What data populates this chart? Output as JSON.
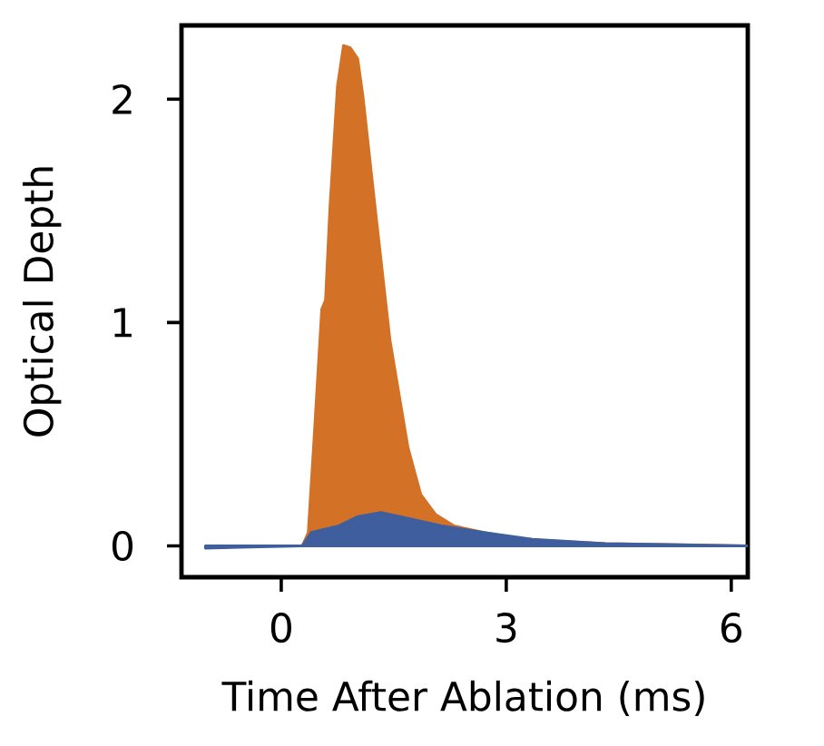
{
  "chart_data": {
    "type": "area",
    "xlabel": "Time After Ablation (ms)",
    "ylabel": "Optical Depth",
    "xlim": [
      -1.33,
      6.22
    ],
    "ylim": [
      -0.14,
      2.33
    ],
    "xticks": [
      0,
      3,
      6
    ],
    "yticks": [
      0,
      1,
      2
    ],
    "grid": false,
    "series": [
      {
        "color": "#d37227",
        "x": [
          -1.01,
          0.28,
          0.36,
          0.43,
          0.54,
          0.59,
          0.65,
          0.75,
          0.83,
          0.92,
          1.02,
          1.09,
          1.25,
          1.45,
          1.69,
          1.86,
          2.06,
          2.3,
          2.7,
          3.19,
          4.32,
          6.21
        ],
        "values": [
          0,
          0,
          0.06,
          0.44,
          1.06,
          1.1,
          1.52,
          2.06,
          2.24,
          2.23,
          2.18,
          2.01,
          1.52,
          0.92,
          0.44,
          0.23,
          0.14,
          0.09,
          0.06,
          0.03,
          0.01,
          0
        ]
      },
      {
        "color": "#3e5e9e",
        "x": [
          -1.01,
          0.28,
          0.4,
          0.77,
          1.01,
          1.33,
          1.73,
          2.14,
          2.7,
          3.35,
          4.32,
          6.21
        ],
        "values": [
          -0.01,
          0,
          0.06,
          0.09,
          0.13,
          0.15,
          0.12,
          0.09,
          0.06,
          0.03,
          0.01,
          0
        ]
      }
    ]
  }
}
